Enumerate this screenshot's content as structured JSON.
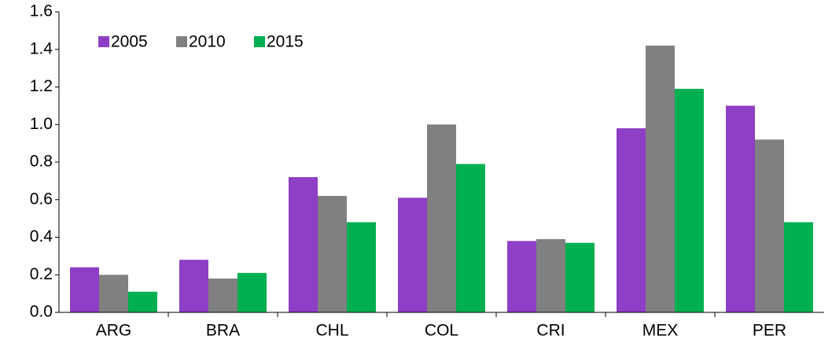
{
  "chart_data": {
    "type": "bar",
    "categories": [
      "ARG",
      "BRA",
      "CHL",
      "COL",
      "CRI",
      "MEX",
      "PER"
    ],
    "series": [
      {
        "name": "2005",
        "color": "#8e3fc5",
        "values": [
          0.24,
          0.28,
          0.72,
          0.61,
          0.38,
          0.98,
          1.1
        ]
      },
      {
        "name": "2010",
        "color": "#808080",
        "values": [
          0.2,
          0.18,
          0.62,
          1.0,
          0.39,
          1.42,
          0.92
        ]
      },
      {
        "name": "2015",
        "color": "#00b050",
        "values": [
          0.11,
          0.21,
          0.48,
          0.79,
          0.37,
          1.19,
          0.48
        ]
      }
    ],
    "ylim": [
      0,
      1.6
    ],
    "yticks": [
      {
        "value": 0,
        "label": "0.0"
      },
      0.2,
      0.4,
      0.6,
      0.8,
      {
        "value": 1,
        "label": "1.0"
      },
      1.2,
      1.4,
      1.6
    ],
    "grid": false,
    "legend": "top-left"
  }
}
